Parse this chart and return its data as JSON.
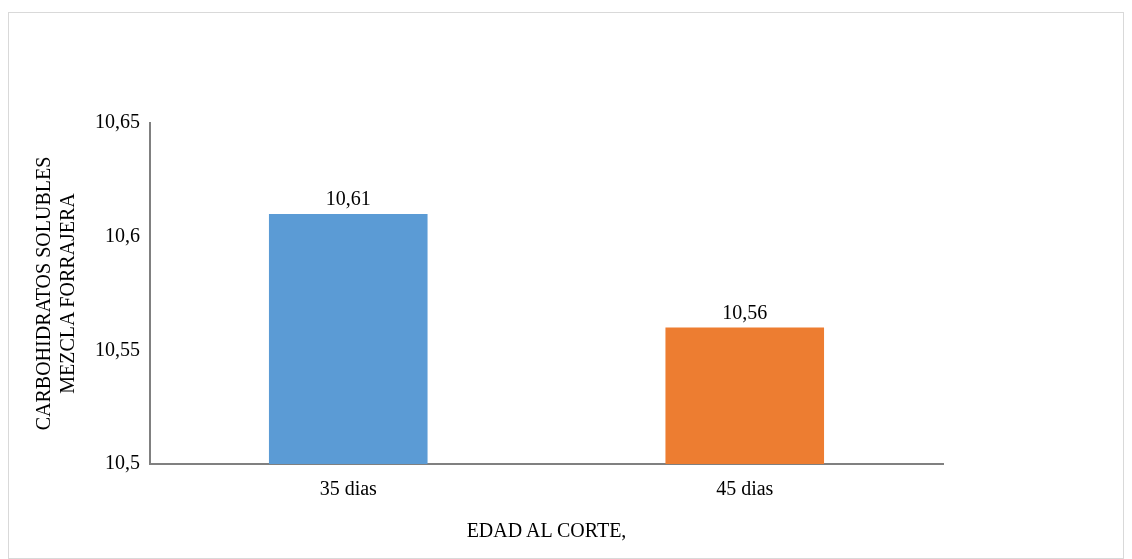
{
  "chart_data": {
    "type": "bar",
    "categories": [
      "35 dias",
      "45 dias"
    ],
    "values": [
      10.61,
      10.56
    ],
    "colors": [
      "#5b9bd5",
      "#ed7d31"
    ],
    "value_labels": [
      "10,61",
      "10,56"
    ],
    "ylim": [
      10.5,
      10.65
    ],
    "yticks": [
      {
        "value": 10.5,
        "label": "10,5"
      },
      {
        "value": 10.55,
        "label": "10,55"
      },
      {
        "value": 10.6,
        "label": "10,6"
      },
      {
        "value": 10.65,
        "label": "10,65"
      }
    ],
    "ylabel": "CARBOHIDRATOS SOLUBLES\nMEZCLA FORRAJERA",
    "xlabel": "EDAD AL CORTE,",
    "grid": false,
    "legend": false
  }
}
